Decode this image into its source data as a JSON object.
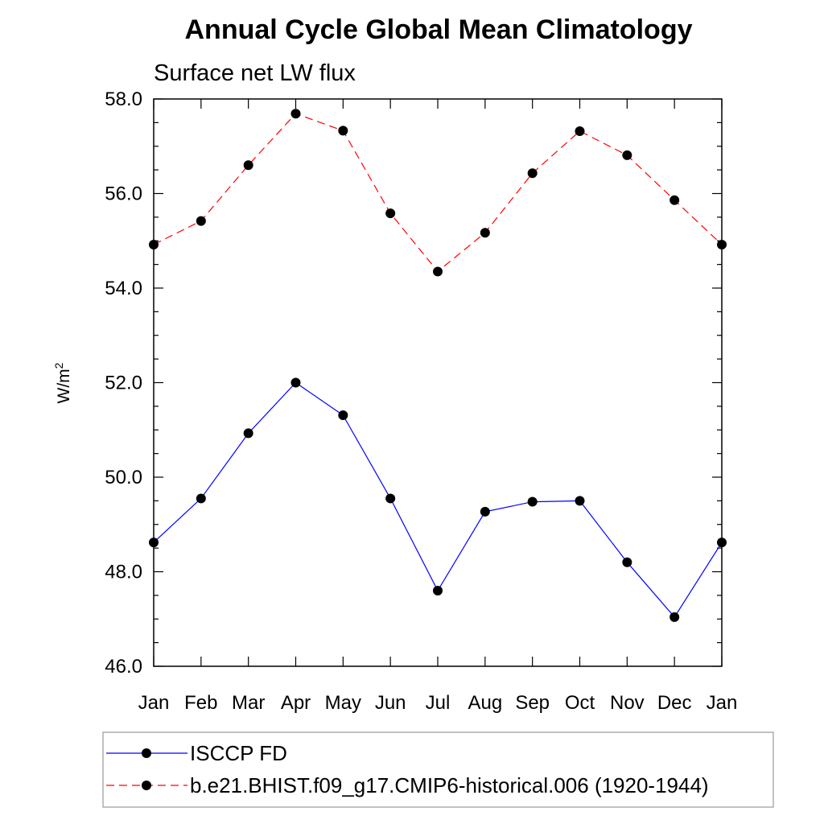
{
  "chart_data": {
    "type": "line",
    "title": "Annual Cycle Global Mean Climatology",
    "subtitle": "Surface net LW flux",
    "ylabel": "W/m",
    "ylabel_sup": "2",
    "xlabel": "",
    "categories": [
      "Jan",
      "Feb",
      "Mar",
      "Apr",
      "May",
      "Jun",
      "Jul",
      "Aug",
      "Sep",
      "Oct",
      "Nov",
      "Dec",
      "Jan"
    ],
    "ylim": [
      46.0,
      58.0
    ],
    "yticks": [
      "46.0",
      "48.0",
      "50.0",
      "52.0",
      "54.0",
      "56.0",
      "58.0"
    ],
    "grid": false,
    "legend_position": "bottom",
    "series": [
      {
        "name": "ISCCP FD",
        "color": "#0000ff",
        "line_style": "solid",
        "marker": "filled-circle",
        "values": [
          48.62,
          49.55,
          50.93,
          52.0,
          51.31,
          49.55,
          47.6,
          49.27,
          49.48,
          49.5,
          48.2,
          47.04,
          48.62
        ]
      },
      {
        "name": "b.e21.BHIST.f09_g17.CMIP6-historical.006 (1920-1944)",
        "color": "#ff0000",
        "line_style": "dashed",
        "marker": "filled-circle",
        "values": [
          54.92,
          55.42,
          56.6,
          57.69,
          57.33,
          55.58,
          54.35,
          55.17,
          56.43,
          57.32,
          56.81,
          55.86,
          54.92
        ]
      }
    ]
  }
}
